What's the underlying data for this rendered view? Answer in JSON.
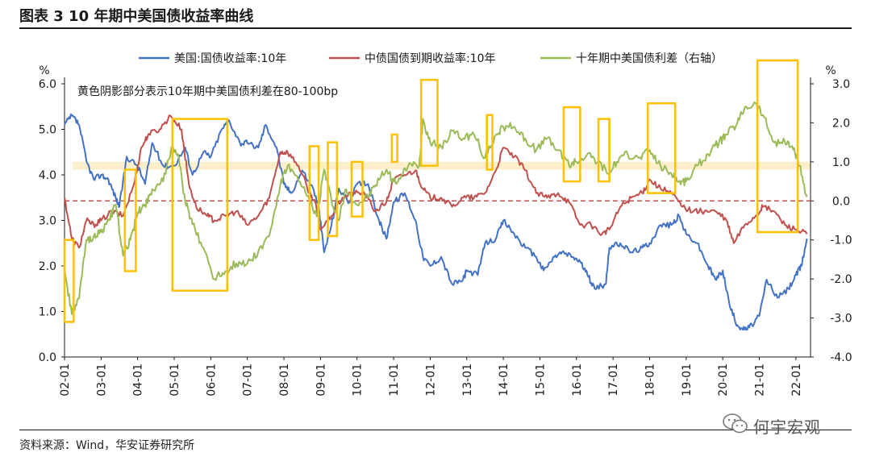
{
  "title": "图表 3 10 年期中美国债收益率曲线",
  "source": "资料来源：Wind，华安证券研究所",
  "watermark": "何宇宏观",
  "chart_data": {
    "type": "line",
    "left_axis_unit": "%",
    "right_axis_unit": "%",
    "ylim_left": [
      0.0,
      6.0
    ],
    "ylim_right": [
      -4.0,
      3.0
    ],
    "left_ticks": [
      "0.0",
      "1.0",
      "2.0",
      "3.0",
      "4.0",
      "5.0",
      "6.0"
    ],
    "right_ticks": [
      "-4.0",
      "-3.0",
      "-2.0",
      "-1.0",
      "0.0",
      "1.0",
      "2.0",
      "3.0"
    ],
    "x_ticks": [
      "02-01",
      "03-01",
      "04-01",
      "05-01",
      "06-01",
      "07-01",
      "08-01",
      "09-01",
      "10-01",
      "11-01",
      "12-01",
      "13-01",
      "14-01",
      "15-01",
      "16-01",
      "17-01",
      "18-01",
      "19-01",
      "20-01",
      "21-01",
      "22-01"
    ],
    "annotation": "黄色阴影部分表示10年期中美国债利差在80-100bp",
    "shaded_band_right": [
      0.8,
      1.0
    ],
    "zero_line_right": 0.0,
    "legend_position": "top",
    "colors": {
      "us": "#4472C4",
      "cn": "#C0504D",
      "spread": "#9BBB59",
      "box": "#FFC000",
      "band": "#FDEBBB",
      "zero": "#C0504D"
    },
    "series": [
      {
        "name": "美国:国债收益率:10年",
        "axis": "left",
        "color": "#4472C4",
        "x": [
          2002.0,
          2002.2,
          2002.4,
          2002.6,
          2002.8,
          2003.0,
          2003.2,
          2003.4,
          2003.5,
          2003.7,
          2004.0,
          2004.2,
          2004.4,
          2004.7,
          2005.0,
          2005.3,
          2005.5,
          2005.8,
          2006.0,
          2006.3,
          2006.5,
          2006.8,
          2007.0,
          2007.3,
          2007.5,
          2007.8,
          2008.0,
          2008.2,
          2008.5,
          2008.8,
          2008.95,
          2009.1,
          2009.3,
          2009.5,
          2009.8,
          2010.0,
          2010.3,
          2010.6,
          2010.8,
          2011.0,
          2011.3,
          2011.6,
          2011.8,
          2012.0,
          2012.3,
          2012.6,
          2012.9,
          2013.0,
          2013.3,
          2013.5,
          2013.8,
          2014.0,
          2014.3,
          2014.6,
          2014.9,
          2015.1,
          2015.4,
          2015.6,
          2015.9,
          2016.1,
          2016.3,
          2016.5,
          2016.8,
          2016.9,
          2017.2,
          2017.5,
          2017.8,
          2018.0,
          2018.3,
          2018.6,
          2018.8,
          2019.0,
          2019.3,
          2019.6,
          2019.8,
          2020.0,
          2020.2,
          2020.4,
          2020.6,
          2020.8,
          2021.0,
          2021.2,
          2021.5,
          2021.8,
          2022.0,
          2022.15,
          2022.3
        ],
        "values": [
          5.1,
          5.3,
          5.1,
          4.3,
          3.9,
          4.0,
          3.9,
          3.5,
          3.3,
          4.4,
          4.2,
          3.8,
          4.7,
          4.2,
          4.2,
          4.6,
          4.0,
          4.5,
          4.4,
          5.0,
          5.2,
          4.7,
          4.7,
          4.6,
          5.1,
          4.6,
          3.8,
          3.6,
          4.1,
          3.7,
          3.3,
          2.3,
          2.9,
          3.7,
          3.4,
          3.8,
          3.8,
          3.0,
          2.6,
          3.4,
          3.6,
          3.0,
          2.2,
          2.0,
          2.2,
          1.6,
          1.7,
          1.9,
          1.8,
          2.5,
          2.6,
          3.0,
          2.7,
          2.4,
          2.2,
          1.9,
          2.2,
          2.3,
          2.2,
          2.1,
          1.8,
          1.5,
          1.6,
          2.4,
          2.5,
          2.3,
          2.4,
          2.5,
          2.9,
          2.9,
          3.1,
          2.7,
          2.5,
          2.0,
          1.7,
          1.9,
          1.1,
          0.7,
          0.6,
          0.7,
          0.9,
          1.7,
          1.3,
          1.5,
          1.8,
          2.0,
          2.6
        ]
      },
      {
        "name": "中债国债到期收益率:10年",
        "axis": "left",
        "color": "#C0504D",
        "x": [
          2002.0,
          2002.2,
          2002.4,
          2002.6,
          2002.8,
          2003.0,
          2003.3,
          2003.6,
          2003.9,
          2004.1,
          2004.3,
          2004.6,
          2004.9,
          2005.2,
          2005.4,
          2005.6,
          2005.9,
          2006.1,
          2006.4,
          2006.7,
          2007.0,
          2007.3,
          2007.6,
          2007.9,
          2008.1,
          2008.4,
          2008.7,
          2008.85,
          2009.0,
          2009.3,
          2009.6,
          2009.9,
          2010.2,
          2010.5,
          2010.8,
          2011.0,
          2011.3,
          2011.6,
          2011.8,
          2012.0,
          2012.3,
          2012.6,
          2012.9,
          2013.2,
          2013.5,
          2013.8,
          2014.0,
          2014.3,
          2014.6,
          2014.9,
          2015.2,
          2015.5,
          2015.8,
          2016.1,
          2016.4,
          2016.7,
          2016.9,
          2017.2,
          2017.5,
          2017.8,
          2018.0,
          2018.3,
          2018.6,
          2018.9,
          2019.2,
          2019.5,
          2019.8,
          2020.1,
          2020.3,
          2020.6,
          2020.9,
          2021.1,
          2021.4,
          2021.7,
          2022.0,
          2022.3
        ],
        "values": [
          3.5,
          2.6,
          2.4,
          3.0,
          2.9,
          3.0,
          3.2,
          3.1,
          3.8,
          4.6,
          4.9,
          5.0,
          5.3,
          5.0,
          3.8,
          3.3,
          3.1,
          3.0,
          3.1,
          3.2,
          2.9,
          3.1,
          3.5,
          4.5,
          4.5,
          4.2,
          3.6,
          3.4,
          2.8,
          3.1,
          3.5,
          3.6,
          3.6,
          3.2,
          3.4,
          3.9,
          4.0,
          4.1,
          3.7,
          3.5,
          3.5,
          3.3,
          3.5,
          3.5,
          3.6,
          4.1,
          4.6,
          4.4,
          4.1,
          3.6,
          3.5,
          3.6,
          3.4,
          2.9,
          2.9,
          2.7,
          2.8,
          3.3,
          3.5,
          3.6,
          3.9,
          3.7,
          3.6,
          3.3,
          3.2,
          3.2,
          3.2,
          3.0,
          2.5,
          2.9,
          3.1,
          3.3,
          3.2,
          2.9,
          2.8,
          2.7
        ]
      },
      {
        "name": "十年期中美国债利差（右轴）",
        "axis": "right",
        "color": "#9BBB59",
        "x": [
          2002.0,
          2002.2,
          2002.4,
          2002.6,
          2002.8,
          2003.0,
          2003.2,
          2003.4,
          2003.6,
          2003.8,
          2004.0,
          2004.2,
          2004.4,
          2004.7,
          2004.95,
          2005.1,
          2005.3,
          2005.5,
          2005.8,
          2006.1,
          2006.4,
          2006.7,
          2007.0,
          2007.3,
          2007.6,
          2007.9,
          2008.1,
          2008.4,
          2008.7,
          2008.9,
          2009.1,
          2009.3,
          2009.5,
          2009.7,
          2010.0,
          2010.3,
          2010.5,
          2010.8,
          2011.0,
          2011.2,
          2011.4,
          2011.7,
          2011.8,
          2012.0,
          2012.3,
          2012.6,
          2012.9,
          2013.2,
          2013.5,
          2013.8,
          2014.0,
          2014.3,
          2014.6,
          2014.9,
          2015.2,
          2015.5,
          2015.8,
          2016.0,
          2016.3,
          2016.6,
          2016.9,
          2017.1,
          2017.4,
          2017.7,
          2018.0,
          2018.3,
          2018.6,
          2018.8,
          2019.0,
          2019.3,
          2019.6,
          2019.9,
          2020.1,
          2020.4,
          2020.6,
          2020.9,
          2021.1,
          2021.4,
          2021.7,
          2021.9,
          2022.1,
          2022.3
        ],
        "values": [
          -1.8,
          -2.9,
          -2.5,
          -1.0,
          -0.9,
          -0.8,
          -0.5,
          -0.1,
          -1.4,
          -1.0,
          -0.3,
          -0.1,
          0.3,
          0.5,
          1.4,
          1.2,
          0.0,
          -0.6,
          -1.2,
          -2.0,
          -1.8,
          -1.6,
          -1.6,
          -1.3,
          -0.9,
          0.4,
          0.9,
          0.5,
          0.0,
          -0.4,
          0.8,
          0.0,
          -0.5,
          0.3,
          -0.1,
          0.1,
          0.4,
          0.8,
          0.5,
          0.6,
          0.9,
          0.9,
          2.1,
          1.5,
          1.4,
          1.8,
          1.6,
          1.7,
          1.1,
          1.7,
          1.9,
          1.9,
          1.6,
          1.3,
          1.6,
          1.3,
          0.9,
          1.0,
          1.2,
          1.0,
          0.7,
          1.0,
          1.2,
          1.1,
          1.3,
          0.9,
          0.7,
          0.5,
          0.5,
          0.9,
          1.2,
          1.5,
          1.7,
          2.0,
          2.4,
          2.5,
          2.2,
          1.5,
          1.5,
          1.4,
          0.9,
          0.1
        ]
      }
    ],
    "boxes_right": [
      {
        "x": [
          2002.0,
          2002.25
        ],
        "y": [
          -3.1,
          -1.0
        ]
      },
      {
        "x": [
          2003.65,
          2003.95
        ],
        "y": [
          -1.8,
          0.8
        ]
      },
      {
        "x": [
          2004.95,
          2006.45
        ],
        "y": [
          -2.3,
          2.1
        ]
      },
      {
        "x": [
          2008.7,
          2008.95
        ],
        "y": [
          -1.0,
          1.4
        ]
      },
      {
        "x": [
          2009.2,
          2009.45
        ],
        "y": [
          -0.9,
          1.5
        ]
      },
      {
        "x": [
          2009.85,
          2010.15
        ],
        "y": [
          -0.4,
          1.0
        ]
      },
      {
        "x": [
          2010.95,
          2011.1
        ],
        "y": [
          1.0,
          1.7
        ]
      },
      {
        "x": [
          2011.75,
          2012.2
        ],
        "y": [
          0.9,
          3.1
        ]
      },
      {
        "x": [
          2013.55,
          2013.7
        ],
        "y": [
          0.8,
          2.2
        ]
      },
      {
        "x": [
          2015.65,
          2016.1
        ],
        "y": [
          0.5,
          2.4
        ]
      },
      {
        "x": [
          2016.6,
          2016.9
        ],
        "y": [
          0.5,
          2.1
        ]
      },
      {
        "x": [
          2017.95,
          2018.7
        ],
        "y": [
          0.2,
          2.5
        ]
      },
      {
        "x": [
          2020.95,
          2022.05
        ],
        "y": [
          -0.8,
          3.6
        ]
      }
    ]
  }
}
